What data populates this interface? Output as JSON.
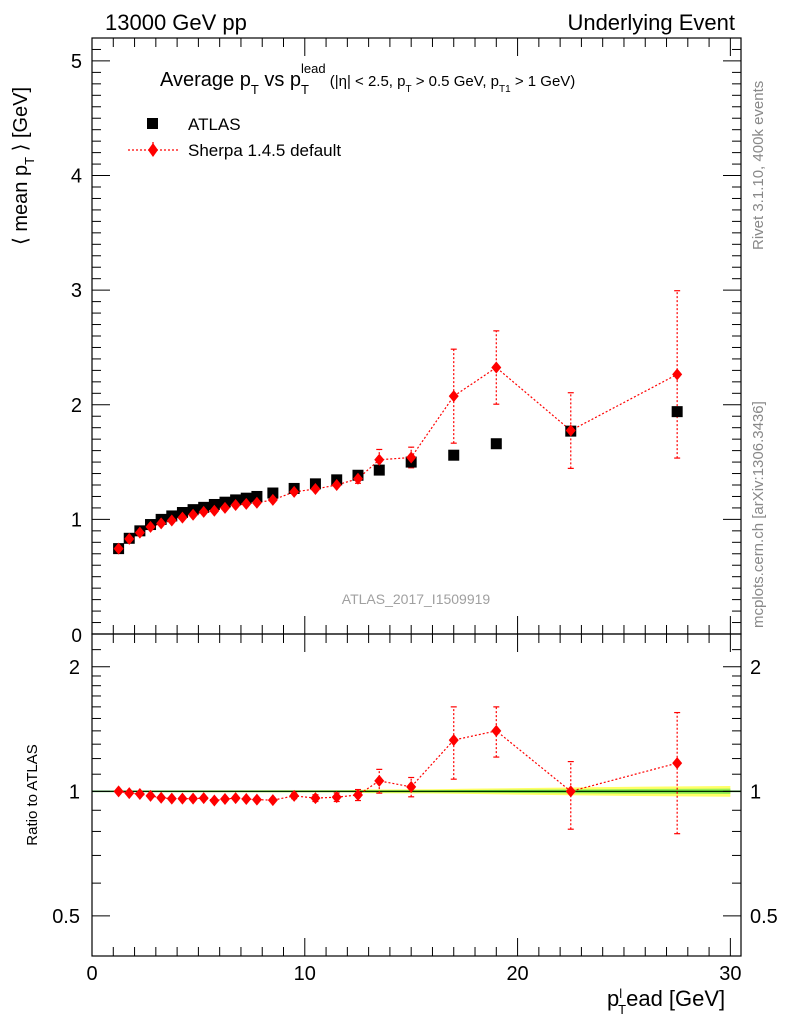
{
  "header": {
    "left": "13000 GeV pp",
    "right": "Underlying Event"
  },
  "side_labels": {
    "rivet": "Rivet 3.1.10,  400k events",
    "mcplots": "mcplots.cern.ch [arXiv:1306.3436]"
  },
  "analysis_tag": "ATLAS_2017_I1509919",
  "title": {
    "main": "Average p",
    "main_sub": "T",
    "vs": " vs p",
    "vs_sub": "T",
    "vs_sup": "lead",
    "cuts_1": " (|η| < 2.5, p",
    "cuts_1_sub": "T",
    "cuts_2": " > 0.5 GeV, p",
    "cuts_2_sub": "T1",
    "cuts_3": " > 1 GeV)"
  },
  "legend": {
    "atlas": "ATLAS",
    "sherpa": "Sherpa 1.4.5 default"
  },
  "colors": {
    "data": "#000000",
    "mc": "#ff0000",
    "band_outer": "#ffff66",
    "band_inner": "#99ee55",
    "ratio_line": "#00aa00"
  },
  "chart_data": {
    "type": "scatter",
    "xlabel": "p",
    "xlabel_sub": "T",
    "xlabel_sup": "l",
    "xlabel_rest": "ead [GeV]",
    "ylabel_main": "⟨ mean p",
    "ylabel_main_sub": "T",
    "ylabel_main_rest": " ⟩ [GeV]",
    "ylabel_ratio": "Ratio to ATLAS",
    "xlim": [
      0,
      30.5
    ],
    "ylim_main": [
      0,
      5.2
    ],
    "ylim_ratio": [
      0.4,
      2.4
    ],
    "ratio_scale": "log",
    "x_ticks": [
      0,
      10,
      20,
      30
    ],
    "y_ticks_main": [
      1,
      2,
      3,
      4,
      5
    ],
    "y_ticks_main_labels": [
      "1",
      "2",
      "3",
      "4",
      "5"
    ],
    "y_ticks_main_bottom_label": "0",
    "y_ticks_ratio": [
      0.5,
      1,
      2
    ],
    "y_ticks_ratio_labels": [
      "0.5",
      "1",
      "2"
    ],
    "atlas": {
      "x": [
        1.25,
        1.75,
        2.25,
        2.75,
        3.25,
        3.75,
        4.25,
        4.75,
        5.25,
        5.75,
        6.25,
        6.75,
        7.25,
        7.75,
        8.5,
        9.5,
        10.5,
        11.5,
        12.5,
        13.5,
        15.0,
        17.0,
        19.0,
        22.5,
        27.5
      ],
      "y": [
        0.745,
        0.835,
        0.9,
        0.955,
        1.0,
        1.03,
        1.06,
        1.085,
        1.105,
        1.13,
        1.15,
        1.17,
        1.185,
        1.2,
        1.23,
        1.27,
        1.31,
        1.345,
        1.385,
        1.43,
        1.5,
        1.56,
        1.66,
        1.77,
        1.94
      ]
    },
    "sherpa": {
      "x": [
        1.25,
        1.75,
        2.25,
        2.75,
        3.25,
        3.75,
        4.25,
        4.75,
        5.25,
        5.75,
        6.25,
        6.75,
        7.25,
        7.75,
        8.5,
        9.5,
        10.5,
        11.5,
        12.5,
        13.5,
        15.0,
        17.0,
        19.0,
        22.5,
        27.5
      ],
      "y": [
        0.745,
        0.83,
        0.885,
        0.935,
        0.965,
        0.99,
        1.015,
        1.04,
        1.065,
        1.075,
        1.1,
        1.125,
        1.135,
        1.145,
        1.17,
        1.24,
        1.265,
        1.3,
        1.355,
        1.52,
        1.54,
        2.075,
        2.325,
        1.775,
        2.265
      ],
      "err": [
        0.01,
        0.01,
        0.01,
        0.01,
        0.01,
        0.01,
        0.01,
        0.01,
        0.01,
        0.01,
        0.01,
        0.01,
        0.01,
        0.01,
        0.015,
        0.02,
        0.02,
        0.03,
        0.04,
        0.09,
        0.09,
        0.41,
        0.32,
        0.33,
        0.73
      ]
    },
    "ratio": {
      "x": [
        1.25,
        1.75,
        2.25,
        2.75,
        3.25,
        3.75,
        4.25,
        4.75,
        5.25,
        5.75,
        6.25,
        6.75,
        7.25,
        7.75,
        8.5,
        9.5,
        10.5,
        11.5,
        12.5,
        13.5,
        15.0,
        17.0,
        19.0,
        22.5,
        27.5
      ],
      "y": [
        1.0,
        0.99,
        0.985,
        0.975,
        0.965,
        0.96,
        0.96,
        0.96,
        0.963,
        0.95,
        0.958,
        0.963,
        0.958,
        0.955,
        0.952,
        0.975,
        0.963,
        0.968,
        0.98,
        1.06,
        1.025,
        1.33,
        1.4,
        1.0,
        1.17
      ],
      "lo": [
        0.99,
        0.98,
        0.975,
        0.965,
        0.955,
        0.95,
        0.95,
        0.95,
        0.953,
        0.94,
        0.948,
        0.953,
        0.948,
        0.945,
        0.94,
        0.96,
        0.945,
        0.945,
        0.95,
        0.99,
        0.97,
        1.07,
        1.21,
        0.81,
        0.79
      ],
      "hi": [
        1.01,
        1.0,
        0.995,
        0.985,
        0.975,
        0.97,
        0.97,
        0.97,
        0.973,
        0.96,
        0.968,
        0.973,
        0.968,
        0.965,
        0.964,
        0.99,
        0.981,
        0.991,
        1.01,
        1.13,
        1.08,
        1.6,
        1.6,
        1.18,
        1.55
      ]
    },
    "band": {
      "x": [
        1.0,
        12.0,
        13.0,
        16.0,
        18.0,
        20.0,
        25.0,
        30.0
      ],
      "half_width": [
        0.004,
        0.006,
        0.01,
        0.012,
        0.015,
        0.018,
        0.025,
        0.03
      ]
    }
  }
}
